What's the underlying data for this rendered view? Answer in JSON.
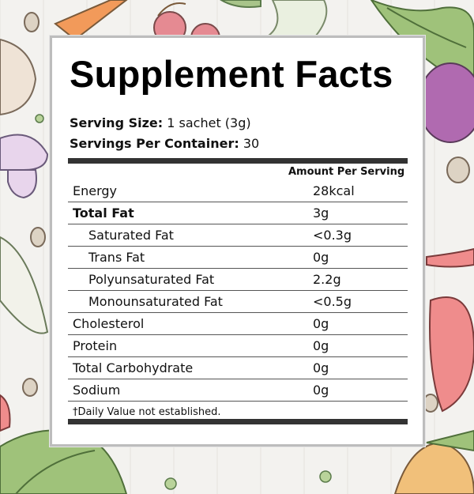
{
  "title": "Supplement Facts",
  "serving": {
    "size_label": "Serving Size:",
    "size_value": " 1 sachet (3g)",
    "per_container_label": "Servings Per Container:",
    "per_container_value": " 30"
  },
  "table": {
    "header": "Amount Per Serving",
    "rows": [
      {
        "name": "Energy",
        "value": "28kcal"
      },
      {
        "name": "Total Fat",
        "value": "3g"
      },
      {
        "name": "Saturated Fat",
        "value": "<0.3g"
      },
      {
        "name": "Trans Fat",
        "value": "0g"
      },
      {
        "name": "Polyunsaturated Fat",
        "value": "2.2g"
      },
      {
        "name": "Monounsaturated Fat",
        "value": "<0.5g"
      },
      {
        "name": "Cholesterol",
        "value": "0g"
      },
      {
        "name": "Protein",
        "value": "0g"
      },
      {
        "name": "Total Carbohydrate",
        "value": "0g"
      },
      {
        "name": "Sodium",
        "value": "0g"
      }
    ]
  },
  "footnote": "†Daily Value not established.",
  "background_icons": [
    "carrot-icon",
    "cherry-icon",
    "garlic-icon",
    "mushroom-icon",
    "leek-icon",
    "radish-icon",
    "beet-icon",
    "pepper-icon",
    "spinach-icon",
    "seed-icon",
    "pea-icon"
  ]
}
